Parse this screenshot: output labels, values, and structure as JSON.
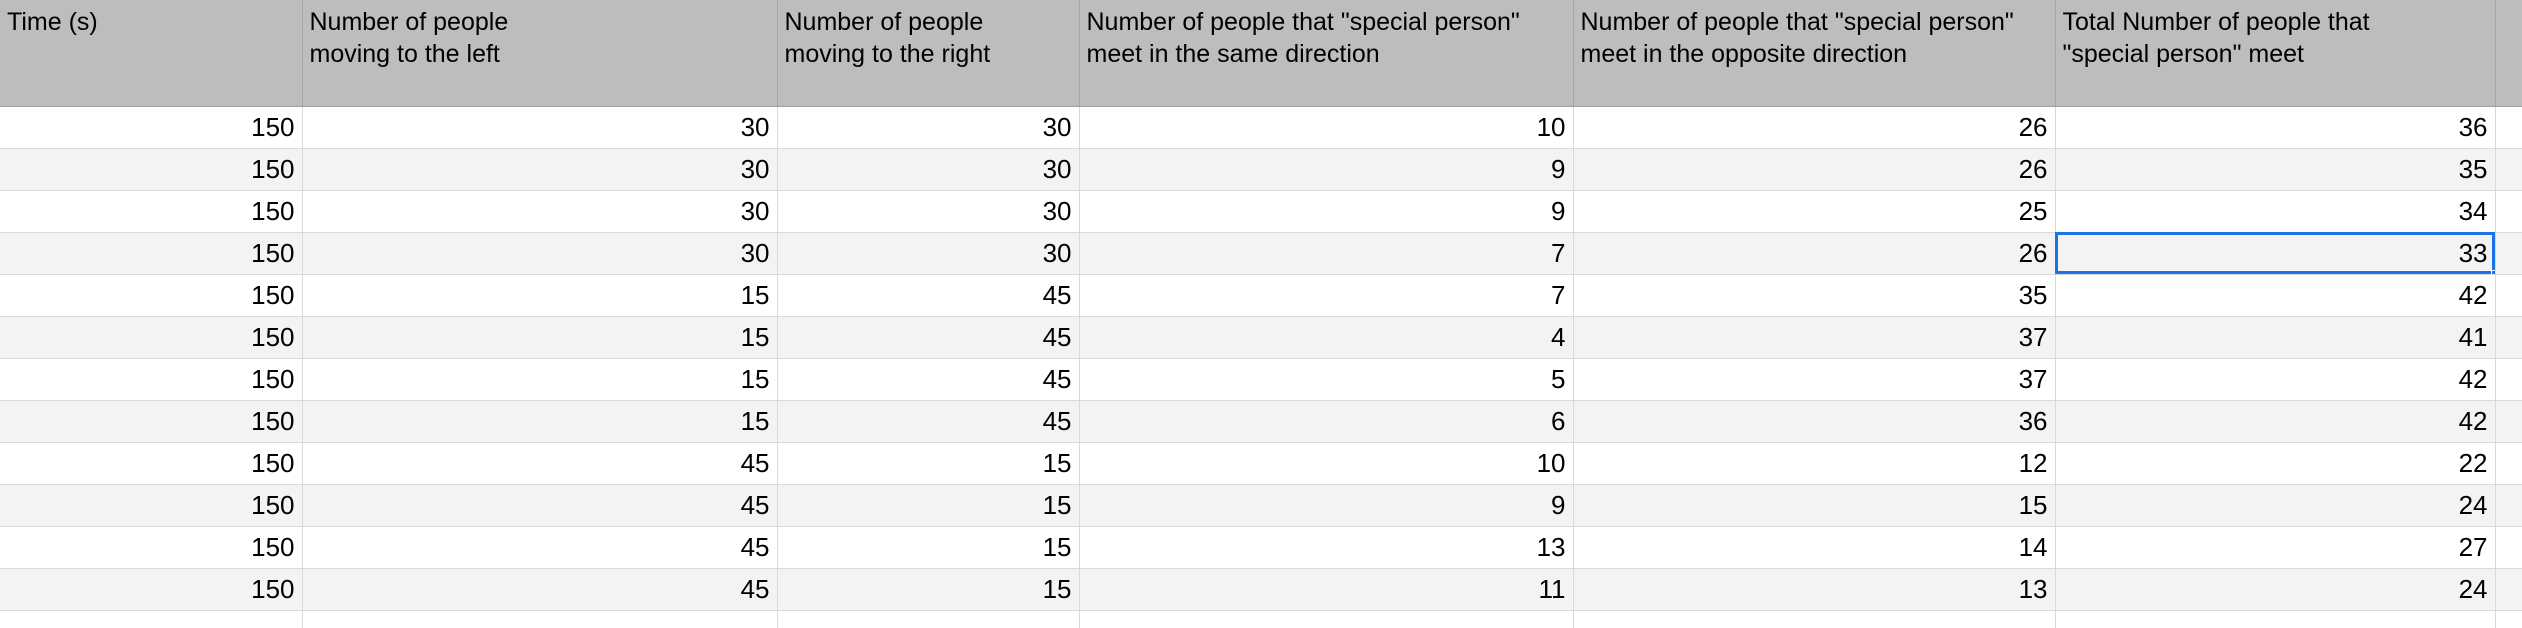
{
  "columns": [
    "Time (s)",
    "Number of people\nmoving to the left",
    "Number of people\nmoving to the right",
    "Number of  people that \"special person\"\nmeet in the same direction",
    "Number of people that \"special person\"\nmeet in the opposite direction",
    "Total Number of people that\n\"special person\" meet"
  ],
  "rows": [
    [
      "150",
      "30",
      "30",
      "10",
      "26",
      "36"
    ],
    [
      "150",
      "30",
      "30",
      "9",
      "26",
      "35"
    ],
    [
      "150",
      "30",
      "30",
      "9",
      "25",
      "34"
    ],
    [
      "150",
      "30",
      "30",
      "7",
      "26",
      "33"
    ],
    [
      "150",
      "15",
      "45",
      "7",
      "35",
      "42"
    ],
    [
      "150",
      "15",
      "45",
      "4",
      "37",
      "41"
    ],
    [
      "150",
      "15",
      "45",
      "5",
      "37",
      "42"
    ],
    [
      "150",
      "15",
      "45",
      "6",
      "36",
      "42"
    ],
    [
      "150",
      "45",
      "15",
      "10",
      "12",
      "22"
    ],
    [
      "150",
      "45",
      "15",
      "9",
      "15",
      "24"
    ],
    [
      "150",
      "45",
      "15",
      "13",
      "14",
      "27"
    ],
    [
      "150",
      "45",
      "15",
      "11",
      "13",
      "24"
    ]
  ],
  "selection": {
    "row": 3,
    "col": 5
  }
}
